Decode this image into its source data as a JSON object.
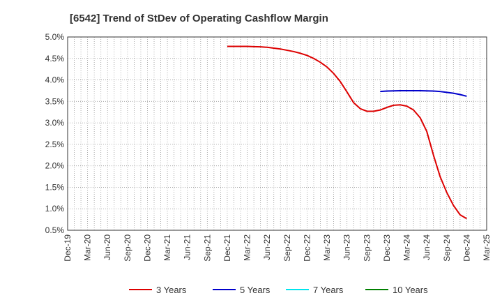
{
  "chart_data": {
    "type": "line",
    "title": "[6542]  Trend of StDev of Operating Cashflow Margin",
    "xlabel": "",
    "ylabel": "",
    "x_ticks": [
      "Dec-19",
      "Mar-20",
      "Jun-20",
      "Sep-20",
      "Dec-20",
      "Mar-21",
      "Jun-21",
      "Sep-21",
      "Dec-21",
      "Mar-22",
      "Jun-22",
      "Sep-22",
      "Dec-22",
      "Mar-23",
      "Jun-23",
      "Sep-23",
      "Dec-23",
      "Mar-24",
      "Jun-24",
      "Sep-24",
      "Dec-24",
      "Mar-25"
    ],
    "y_ticks": [
      "0.5%",
      "1.0%",
      "1.5%",
      "2.0%",
      "2.5%",
      "3.0%",
      "3.5%",
      "4.0%",
      "4.5%",
      "5.0%"
    ],
    "ylim": [
      0.5,
      5.0
    ],
    "y_unit": "%",
    "grid": true,
    "legend_position": "bottom",
    "series": [
      {
        "name": "3 Years",
        "color": "#dd0000",
        "x": [
          "Dec-21",
          "Jan-22",
          "Feb-22",
          "Mar-22",
          "Apr-22",
          "May-22",
          "Jun-22",
          "Jul-22",
          "Aug-22",
          "Sep-22",
          "Oct-22",
          "Nov-22",
          "Dec-22",
          "Jan-23",
          "Feb-23",
          "Mar-23",
          "Apr-23",
          "May-23",
          "Jun-23",
          "Jul-23",
          "Aug-23",
          "Sep-23",
          "Oct-23",
          "Nov-23",
          "Dec-23",
          "Jan-24",
          "Feb-24",
          "Mar-24",
          "Apr-24",
          "May-24",
          "Jun-24",
          "Jul-24",
          "Aug-24",
          "Sep-24",
          "Oct-24",
          "Nov-24",
          "Dec-24"
        ],
        "values": [
          4.78,
          4.78,
          4.78,
          4.78,
          4.775,
          4.77,
          4.76,
          4.74,
          4.72,
          4.69,
          4.66,
          4.62,
          4.57,
          4.5,
          4.41,
          4.3,
          4.15,
          3.96,
          3.72,
          3.47,
          3.33,
          3.27,
          3.27,
          3.3,
          3.36,
          3.41,
          3.42,
          3.39,
          3.3,
          3.12,
          2.8,
          2.25,
          1.75,
          1.38,
          1.08,
          0.86,
          0.77
        ]
      },
      {
        "name": "5 Years",
        "color": "#0000cc",
        "x": [
          "Nov-23",
          "Dec-23",
          "Jan-24",
          "Feb-24",
          "Mar-24",
          "Apr-24",
          "May-24",
          "Jun-24",
          "Jul-24",
          "Aug-24",
          "Sep-24",
          "Oct-24",
          "Nov-24",
          "Dec-24"
        ],
        "values": [
          3.73,
          3.74,
          3.745,
          3.75,
          3.75,
          3.75,
          3.75,
          3.745,
          3.74,
          3.73,
          3.71,
          3.69,
          3.66,
          3.62
        ]
      },
      {
        "name": "7 Years",
        "color": "#00e5ee",
        "x": [],
        "values": []
      },
      {
        "name": "10 Years",
        "color": "#008000",
        "x": [],
        "values": []
      }
    ]
  }
}
